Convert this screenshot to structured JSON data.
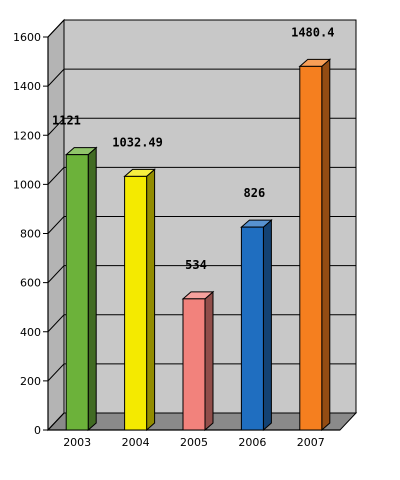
{
  "chart_data": {
    "type": "bar",
    "title": "",
    "xlabel": "",
    "ylabel": "",
    "categories": [
      "2003",
      "2004",
      "2005",
      "2006",
      "2007"
    ],
    "values": [
      1121,
      1032.49,
      534,
      826,
      1480.4
    ],
    "value_labels": [
      "1121",
      "1032.49",
      "534",
      "826",
      "1480.4"
    ],
    "colors": [
      "#6cb23a",
      "#f4ea00",
      "#f2827c",
      "#1f6ec0",
      "#f57f1f"
    ],
    "ylim": [
      0,
      1600
    ],
    "yticks": [
      "0",
      "200",
      "400",
      "600",
      "800",
      "1000",
      "1200",
      "1400",
      "1600"
    ],
    "grid": true,
    "background_color": "#c8c8c8",
    "floor_color": "#8a8a8a",
    "legend": "none"
  }
}
